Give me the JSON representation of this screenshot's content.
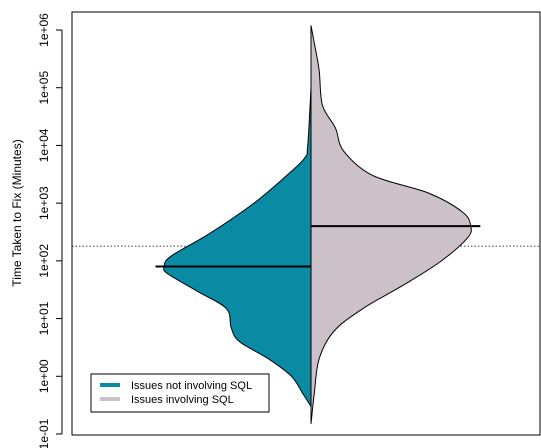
{
  "chart_data": {
    "type": "beanplot",
    "title": "",
    "xlabel": "",
    "ylabel": "Time Taken to Fix (Minutes)",
    "yscale": "log10",
    "ylim": [
      0.1,
      1000000
    ],
    "yticks": [
      {
        "value": 0.1,
        "label": "1e-01"
      },
      {
        "value": 1,
        "label": "1e+00"
      },
      {
        "value": 10,
        "label": "1e+01"
      },
      {
        "value": 100,
        "label": "1e+02"
      },
      {
        "value": 1000,
        "label": "1e+03"
      },
      {
        "value": 10000,
        "label": "1e+04"
      },
      {
        "value": 100000,
        "label": "1e+05"
      },
      {
        "value": 1000000,
        "label": "1e+06"
      }
    ],
    "overall_reference_line": {
      "value": 180,
      "style": "dotted"
    },
    "series": [
      {
        "name": "Issues not involving SQL",
        "side": "left",
        "color": "#0A8BA3",
        "median": 80,
        "density": [
          {
            "y": 0.3,
            "w": 0.0
          },
          {
            "y": 0.5,
            "w": 0.05
          },
          {
            "y": 1,
            "w": 0.12
          },
          {
            "y": 2,
            "w": 0.26
          },
          {
            "y": 4,
            "w": 0.44
          },
          {
            "y": 7,
            "w": 0.49
          },
          {
            "y": 15,
            "w": 0.52
          },
          {
            "y": 30,
            "w": 0.7
          },
          {
            "y": 60,
            "w": 0.88
          },
          {
            "y": 80,
            "w": 0.9
          },
          {
            "y": 120,
            "w": 0.86
          },
          {
            "y": 300,
            "w": 0.62
          },
          {
            "y": 1000,
            "w": 0.35
          },
          {
            "y": 3000,
            "w": 0.15
          },
          {
            "y": 6000,
            "w": 0.04
          },
          {
            "y": 10000,
            "w": 0.02
          },
          {
            "y": 100000,
            "w": 0.0
          }
        ]
      },
      {
        "name": "Issues involving SQL",
        "side": "right",
        "color": "#CDC1C9",
        "median": 400,
        "density": [
          {
            "y": 0.15,
            "w": 0.0
          },
          {
            "y": 0.5,
            "w": 0.02
          },
          {
            "y": 2,
            "w": 0.05
          },
          {
            "y": 6,
            "w": 0.14
          },
          {
            "y": 15,
            "w": 0.32
          },
          {
            "y": 40,
            "w": 0.58
          },
          {
            "y": 100,
            "w": 0.8
          },
          {
            "y": 250,
            "w": 0.96
          },
          {
            "y": 400,
            "w": 0.98
          },
          {
            "y": 700,
            "w": 0.93
          },
          {
            "y": 1500,
            "w": 0.72
          },
          {
            "y": 3000,
            "w": 0.38
          },
          {
            "y": 8000,
            "w": 0.2
          },
          {
            "y": 20000,
            "w": 0.15
          },
          {
            "y": 50000,
            "w": 0.07
          },
          {
            "y": 200000,
            "w": 0.05
          },
          {
            "y": 600000,
            "w": 0.02
          },
          {
            "y": 1200000,
            "w": 0.0
          }
        ]
      }
    ],
    "legend": {
      "placement": "bottom-left",
      "entries": [
        {
          "label": "Issues not involving SQL",
          "color": "#0A8BA3"
        },
        {
          "label": "Issues involving SQL",
          "color": "#CDC1C9"
        }
      ]
    }
  }
}
